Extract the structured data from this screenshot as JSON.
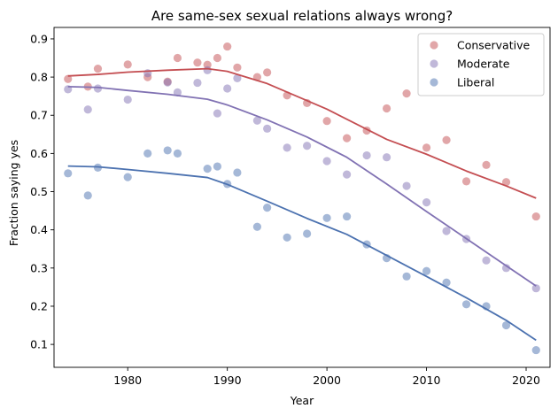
{
  "chart_data": {
    "type": "scatter",
    "title": "Are same-sex sexual relations always wrong?",
    "xlabel": "Year",
    "ylabel": "Fraction saying yes",
    "xlim": [
      1972.6,
      2022.4
    ],
    "ylim": [
      0.04,
      0.93
    ],
    "xticks": [
      1980,
      1990,
      2000,
      2010,
      2020
    ],
    "yticks": [
      0.1,
      0.2,
      0.3,
      0.4,
      0.5,
      0.6,
      0.7,
      0.8,
      0.9
    ],
    "legend_position": "top-right",
    "grid": false,
    "series": [
      {
        "name": "Conservative",
        "color": "#c44e52",
        "points": [
          [
            1974,
            0.795
          ],
          [
            1976,
            0.775
          ],
          [
            1977,
            0.822
          ],
          [
            1980,
            0.833
          ],
          [
            1982,
            0.8
          ],
          [
            1984,
            0.788
          ],
          [
            1985,
            0.85
          ],
          [
            1987,
            0.838
          ],
          [
            1988,
            0.832
          ],
          [
            1989,
            0.85
          ],
          [
            1990,
            0.88
          ],
          [
            1991,
            0.825
          ],
          [
            1993,
            0.8
          ],
          [
            1994,
            0.812
          ],
          [
            1996,
            0.752
          ],
          [
            1998,
            0.732
          ],
          [
            2000,
            0.685
          ],
          [
            2002,
            0.64
          ],
          [
            2004,
            0.66
          ],
          [
            2006,
            0.718
          ],
          [
            2008,
            0.757
          ],
          [
            2010,
            0.615
          ],
          [
            2012,
            0.635
          ],
          [
            2014,
            0.527
          ],
          [
            2016,
            0.57
          ],
          [
            2018,
            0.525
          ],
          [
            2021,
            0.435
          ]
        ],
        "trend": [
          [
            1974,
            0.803
          ],
          [
            1977,
            0.807
          ],
          [
            1980,
            0.813
          ],
          [
            1984,
            0.818
          ],
          [
            1988,
            0.822
          ],
          [
            1990,
            0.815
          ],
          [
            1994,
            0.783
          ],
          [
            2000,
            0.716
          ],
          [
            2006,
            0.637
          ],
          [
            2010,
            0.598
          ],
          [
            2014,
            0.554
          ],
          [
            2018,
            0.515
          ],
          [
            2021,
            0.483
          ]
        ]
      },
      {
        "name": "Moderate",
        "color": "#8172b3",
        "points": [
          [
            1974,
            0.768
          ],
          [
            1976,
            0.715
          ],
          [
            1977,
            0.77
          ],
          [
            1980,
            0.741
          ],
          [
            1982,
            0.81
          ],
          [
            1984,
            0.786
          ],
          [
            1985,
            0.76
          ],
          [
            1987,
            0.785
          ],
          [
            1988,
            0.818
          ],
          [
            1989,
            0.705
          ],
          [
            1990,
            0.77
          ],
          [
            1991,
            0.797
          ],
          [
            1993,
            0.686
          ],
          [
            1994,
            0.665
          ],
          [
            1996,
            0.615
          ],
          [
            1998,
            0.62
          ],
          [
            2000,
            0.58
          ],
          [
            2002,
            0.545
          ],
          [
            2004,
            0.595
          ],
          [
            2006,
            0.59
          ],
          [
            2008,
            0.515
          ],
          [
            2010,
            0.472
          ],
          [
            2012,
            0.397
          ],
          [
            2014,
            0.376
          ],
          [
            2016,
            0.32
          ],
          [
            2018,
            0.3
          ],
          [
            2021,
            0.247
          ]
        ],
        "trend": [
          [
            1974,
            0.775
          ],
          [
            1977,
            0.773
          ],
          [
            1980,
            0.765
          ],
          [
            1984,
            0.755
          ],
          [
            1988,
            0.742
          ],
          [
            1990,
            0.727
          ],
          [
            1994,
            0.688
          ],
          [
            1998,
            0.643
          ],
          [
            2002,
            0.59
          ],
          [
            2006,
            0.52
          ],
          [
            2010,
            0.448
          ],
          [
            2014,
            0.377
          ],
          [
            2018,
            0.306
          ],
          [
            2021,
            0.253
          ]
        ]
      },
      {
        "name": "Liberal",
        "color": "#4c72b0",
        "points": [
          [
            1974,
            0.548
          ],
          [
            1976,
            0.49
          ],
          [
            1977,
            0.563
          ],
          [
            1980,
            0.538
          ],
          [
            1982,
            0.6
          ],
          [
            1984,
            0.608
          ],
          [
            1985,
            0.6
          ],
          [
            1988,
            0.56
          ],
          [
            1989,
            0.566
          ],
          [
            1990,
            0.52
          ],
          [
            1991,
            0.55
          ],
          [
            1993,
            0.408
          ],
          [
            1994,
            0.458
          ],
          [
            1996,
            0.38
          ],
          [
            1998,
            0.39
          ],
          [
            2000,
            0.431
          ],
          [
            2002,
            0.435
          ],
          [
            2004,
            0.362
          ],
          [
            2006,
            0.326
          ],
          [
            2008,
            0.278
          ],
          [
            2010,
            0.292
          ],
          [
            2012,
            0.262
          ],
          [
            2014,
            0.205
          ],
          [
            2016,
            0.2
          ],
          [
            2018,
            0.15
          ],
          [
            2021,
            0.085
          ]
        ],
        "trend": [
          [
            1974,
            0.567
          ],
          [
            1977,
            0.565
          ],
          [
            1980,
            0.558
          ],
          [
            1984,
            0.548
          ],
          [
            1988,
            0.537
          ],
          [
            1990,
            0.519
          ],
          [
            1994,
            0.475
          ],
          [
            1998,
            0.43
          ],
          [
            2002,
            0.388
          ],
          [
            2006,
            0.333
          ],
          [
            2010,
            0.278
          ],
          [
            2014,
            0.222
          ],
          [
            2018,
            0.163
          ],
          [
            2021,
            0.111
          ]
        ]
      }
    ]
  }
}
